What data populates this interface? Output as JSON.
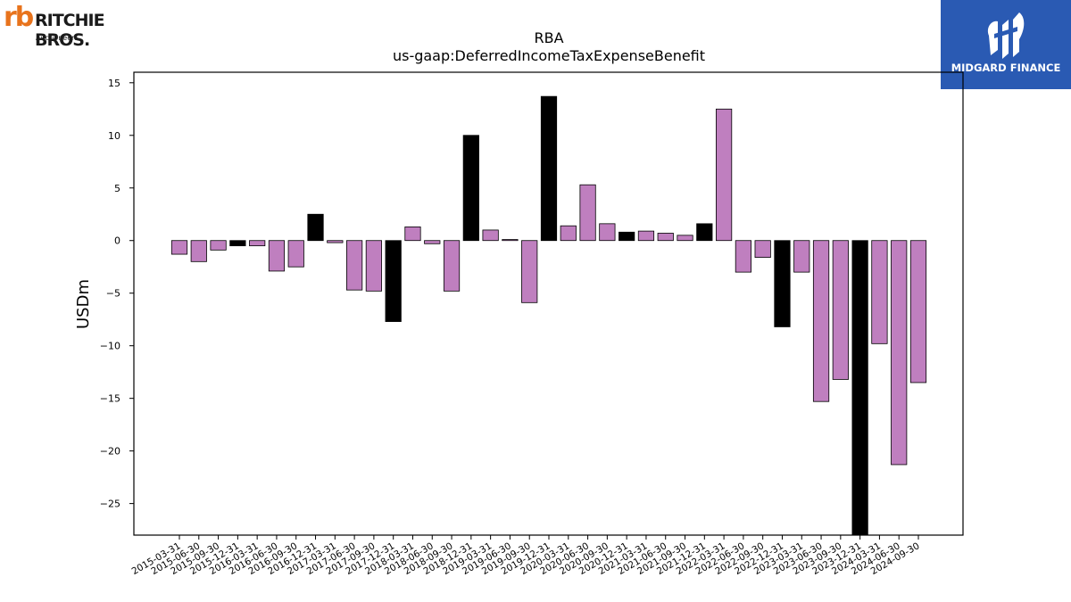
{
  "branding": {
    "left_logo_mark": "rb",
    "left_logo_name": "RITCHIE BROS.",
    "left_logo_sub": "Auctioneers",
    "right_logo_text": "MIDGARD FINANCE",
    "colors": {
      "orange": "#e8731c",
      "blue": "#2a5ab3",
      "dark": "#1a1a1a"
    }
  },
  "chart_data": {
    "type": "bar",
    "title": "RBA",
    "subtitle": "us-gaap:DeferredIncomeTaxExpenseBenefit",
    "xlabel": "",
    "ylabel": "USDm",
    "ylim": [
      -28,
      16
    ],
    "yticks": [
      15,
      10,
      5,
      0,
      -5,
      -10,
      -15,
      -20,
      -25
    ],
    "grid": false,
    "categories": [
      "2015-03-31",
      "2015-06-30",
      "2015-09-30",
      "2015-12-31",
      "2016-03-31",
      "2016-06-30",
      "2016-09-30",
      "2016-12-31",
      "2017-03-31",
      "2017-06-30",
      "2017-09-30",
      "2017-12-31",
      "2018-03-31",
      "2018-06-30",
      "2018-09-30",
      "2018-12-31",
      "2019-03-31",
      "2019-06-30",
      "2019-09-30",
      "2019-12-31",
      "2020-03-31",
      "2020-06-30",
      "2020-09-30",
      "2020-12-31",
      "2021-03-31",
      "2021-06-30",
      "2021-09-30",
      "2021-12-31",
      "2022-03-31",
      "2022-06-30",
      "2022-09-30",
      "2022-12-31",
      "2023-03-31",
      "2023-06-30",
      "2023-09-30",
      "2023-12-31",
      "2024-03-31",
      "2024-06-30",
      "2024-09-30"
    ],
    "values": [
      -1.3,
      -2.0,
      -0.9,
      -0.5,
      -0.5,
      -2.9,
      -2.5,
      2.5,
      -0.2,
      -4.7,
      -4.8,
      -7.7,
      1.3,
      -0.3,
      -4.8,
      10.0,
      1.0,
      0.1,
      -5.9,
      13.7,
      1.4,
      5.3,
      1.6,
      0.8,
      0.9,
      0.7,
      0.5,
      1.6,
      12.5,
      -3.0,
      -1.6,
      -8.2,
      -3.0,
      -15.3,
      -13.2,
      -28.0,
      -9.8,
      -21.3,
      -13.5
    ],
    "highlight": [
      false,
      false,
      false,
      true,
      false,
      false,
      false,
      true,
      false,
      false,
      false,
      true,
      false,
      false,
      false,
      true,
      false,
      false,
      false,
      true,
      false,
      false,
      false,
      true,
      false,
      false,
      false,
      true,
      false,
      false,
      false,
      true,
      false,
      false,
      false,
      true,
      false,
      false,
      false
    ],
    "colors": {
      "bar": "#bf7fbf",
      "highlight_bar": "#000000",
      "edge": "#000000"
    }
  }
}
